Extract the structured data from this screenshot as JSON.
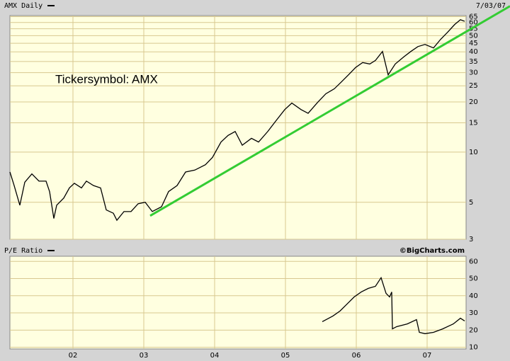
{
  "chart_data": [
    {
      "type": "line",
      "log_scale": true,
      "grid": true,
      "date": "7/03/07",
      "annotation": "Tickersymbol: AMX",
      "xlim": [
        2001.11,
        2007.55
      ],
      "ylim": [
        3,
        66
      ],
      "yticks": [
        3,
        5,
        10,
        15,
        20,
        25,
        30,
        35,
        40,
        45,
        50,
        55,
        60,
        65
      ],
      "series": [
        {
          "name": "AMX Daily",
          "color": "#000000",
          "x": [
            2001.11,
            2001.17,
            2001.25,
            2001.32,
            2001.42,
            2001.52,
            2001.62,
            2001.67,
            2001.73,
            2001.77,
            2001.87,
            2001.95,
            2002.02,
            2002.12,
            2002.19,
            2002.29,
            2002.39,
            2002.47,
            2002.57,
            2002.62,
            2002.72,
            2002.82,
            2002.92,
            2003.02,
            2003.12,
            2003.25,
            2003.35,
            2003.47,
            2003.59,
            2003.72,
            2003.87,
            2003.97,
            2004.09,
            2004.19,
            2004.29,
            2004.39,
            2004.52,
            2004.62,
            2004.75,
            2004.87,
            2004.99,
            2005.09,
            2005.22,
            2005.32,
            2005.45,
            2005.57,
            2005.69,
            2005.79,
            2005.89,
            2005.99,
            2006.09,
            2006.19,
            2006.27,
            2006.37,
            2006.45,
            2006.55,
            2006.67,
            2006.77,
            2006.87,
            2006.97,
            2007.09,
            2007.19,
            2007.29,
            2007.39,
            2007.47,
            2007.53
          ],
          "values": [
            7.6,
            6.3,
            4.8,
            6.6,
            7.4,
            6.7,
            6.7,
            5.8,
            4.0,
            4.8,
            5.3,
            6.1,
            6.5,
            6.1,
            6.7,
            6.3,
            6.1,
            4.5,
            4.3,
            3.9,
            4.4,
            4.4,
            4.9,
            5.0,
            4.4,
            4.7,
            5.8,
            6.3,
            7.6,
            7.8,
            8.4,
            9.3,
            11.5,
            12.6,
            13.3,
            11.0,
            12.1,
            11.5,
            13.3,
            15.5,
            18.0,
            19.7,
            18.0,
            17.1,
            19.8,
            22.4,
            24.0,
            26.4,
            29.1,
            32.2,
            34.5,
            33.8,
            35.5,
            40.2,
            29.1,
            33.8,
            37.3,
            40.2,
            43.0,
            44.3,
            42.2,
            47.5,
            52.5,
            58.4,
            62.3,
            61.0
          ]
        }
      ],
      "trend_line": {
        "x": [
          2003.09,
          2007.55
        ],
        "values": [
          4.15,
          52.8
        ],
        "color": "#33cc33"
      }
    },
    {
      "type": "line",
      "grid": true,
      "source": "©BigCharts.com",
      "xlim": [
        2001.11,
        2007.55
      ],
      "ylim": [
        9,
        63
      ],
      "xticks": [
        {
          "value": 2002,
          "label": "02"
        },
        {
          "value": 2003,
          "label": "03"
        },
        {
          "value": 2004,
          "label": "04"
        },
        {
          "value": 2005,
          "label": "05"
        },
        {
          "value": 2006,
          "label": "06"
        },
        {
          "value": 2007,
          "label": "07"
        }
      ],
      "yticks": [
        10,
        20,
        30,
        40,
        50,
        60
      ],
      "series": [
        {
          "name": "P/E Ratio",
          "color": "#000000",
          "x": [
            2005.52,
            2005.67,
            2005.77,
            2005.87,
            2005.97,
            2006.07,
            2006.17,
            2006.27,
            2006.35,
            2006.42,
            2006.47,
            2006.5,
            2006.51,
            2006.57,
            2006.72,
            2006.85,
            2006.89,
            2006.97,
            2007.09,
            2007.22,
            2007.37,
            2007.47,
            2007.53
          ],
          "values": [
            24.9,
            28.2,
            31.1,
            35.2,
            39.3,
            42.2,
            44.3,
            45.5,
            50.5,
            41.4,
            39.3,
            42.2,
            20.7,
            22.0,
            23.6,
            26.1,
            18.7,
            17.9,
            18.7,
            20.7,
            23.6,
            26.9,
            25.3
          ]
        }
      ]
    }
  ]
}
